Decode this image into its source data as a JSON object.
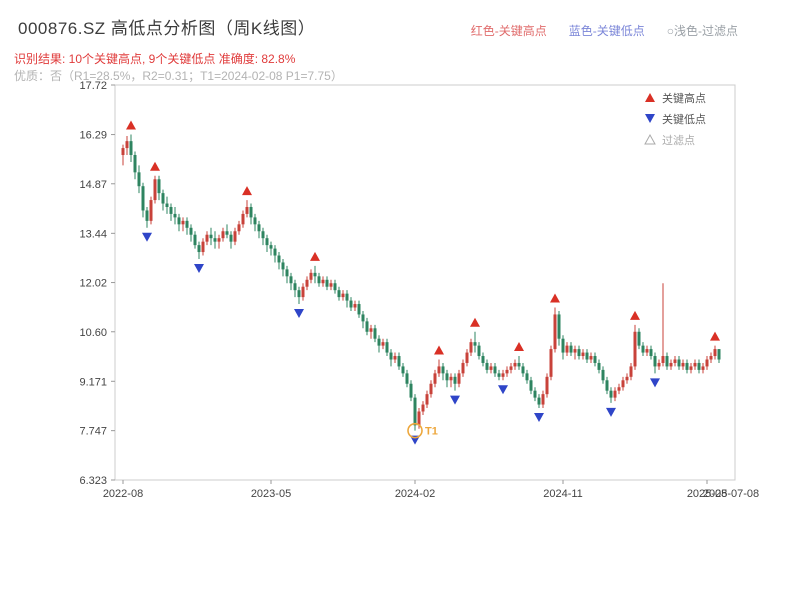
{
  "header": {
    "title": "000876.SZ 高低点分析图（周K线图）",
    "legend": [
      {
        "label": "红色-关键高点",
        "color": "#e06b6b"
      },
      {
        "label": "蓝色-关键低点",
        "color": "#7b86d8"
      },
      {
        "label": "○浅色-过滤点",
        "color": "#9aa0a6"
      }
    ],
    "result_line": "识别结果: 10个关键高点, 9个关键低点  准确度: 82.8%",
    "quality_line": "优质：否（R1=28.5%，R2=0.31；T1=2024-02-08 P1=7.75）"
  },
  "chart_data": {
    "type": "candlestick",
    "title": "000876.SZ 高低点分析图（周K线图）",
    "ylim": [
      6.323,
      17.72
    ],
    "y_tick_labels": [
      "6.323",
      "7.747",
      "9.171",
      "10.60",
      "12.02",
      "13.44",
      "14.87",
      "16.29",
      "17.72"
    ],
    "xlim": [
      -2,
      153
    ],
    "x_ticks": [
      {
        "index": 0,
        "label": "2022-08"
      },
      {
        "index": 37,
        "label": "2023-05"
      },
      {
        "index": 73,
        "label": "2024-02"
      },
      {
        "index": 110,
        "label": "2024-11"
      },
      {
        "index": 146,
        "label": "2025-08"
      }
    ],
    "end_date_label": {
      "index": 152,
      "label": "2025-07-08"
    },
    "candles": [
      [
        15.7,
        16.0,
        15.4,
        15.9
      ],
      [
        15.9,
        16.25,
        15.7,
        16.1
      ],
      [
        16.1,
        16.29,
        15.5,
        15.7
      ],
      [
        15.7,
        15.8,
        15.0,
        15.2
      ],
      [
        15.2,
        15.4,
        14.6,
        14.8
      ],
      [
        14.8,
        14.9,
        13.9,
        14.1
      ],
      [
        14.1,
        14.2,
        13.6,
        13.8
      ],
      [
        13.8,
        14.5,
        13.7,
        14.4
      ],
      [
        14.4,
        15.1,
        14.3,
        15.0
      ],
      [
        15.0,
        15.1,
        14.4,
        14.6
      ],
      [
        14.6,
        14.7,
        14.1,
        14.3
      ],
      [
        14.3,
        14.5,
        14.0,
        14.2
      ],
      [
        14.2,
        14.3,
        13.8,
        14.0
      ],
      [
        14.0,
        14.2,
        13.7,
        13.9
      ],
      [
        13.9,
        14.0,
        13.5,
        13.7
      ],
      [
        13.7,
        13.9,
        13.5,
        13.8
      ],
      [
        13.8,
        13.9,
        13.4,
        13.6
      ],
      [
        13.6,
        13.7,
        13.2,
        13.4
      ],
      [
        13.4,
        13.5,
        13.0,
        13.1
      ],
      [
        13.1,
        13.2,
        12.7,
        12.9
      ],
      [
        12.9,
        13.3,
        12.8,
        13.2
      ],
      [
        13.2,
        13.5,
        13.1,
        13.4
      ],
      [
        13.4,
        13.6,
        13.1,
        13.3
      ],
      [
        13.3,
        13.5,
        13.0,
        13.2
      ],
      [
        13.2,
        13.4,
        13.0,
        13.3
      ],
      [
        13.3,
        13.6,
        13.2,
        13.5
      ],
      [
        13.5,
        13.7,
        13.3,
        13.4
      ],
      [
        13.4,
        13.5,
        13.0,
        13.2
      ],
      [
        13.2,
        13.6,
        13.1,
        13.5
      ],
      [
        13.5,
        13.8,
        13.4,
        13.7
      ],
      [
        13.7,
        14.1,
        13.6,
        14.0
      ],
      [
        14.0,
        14.4,
        13.9,
        14.2
      ],
      [
        14.2,
        14.3,
        13.7,
        13.9
      ],
      [
        13.9,
        14.0,
        13.5,
        13.7
      ],
      [
        13.7,
        13.8,
        13.3,
        13.5
      ],
      [
        13.5,
        13.6,
        13.1,
        13.3
      ],
      [
        13.3,
        13.4,
        12.9,
        13.1
      ],
      [
        13.1,
        13.2,
        12.8,
        13.0
      ],
      [
        13.0,
        13.1,
        12.6,
        12.8
      ],
      [
        12.8,
        12.9,
        12.4,
        12.6
      ],
      [
        12.6,
        12.7,
        12.2,
        12.4
      ],
      [
        12.4,
        12.5,
        12.0,
        12.2
      ],
      [
        12.2,
        12.3,
        11.8,
        12.0
      ],
      [
        12.0,
        12.1,
        11.6,
        11.8
      ],
      [
        11.8,
        11.9,
        11.4,
        11.6
      ],
      [
        11.6,
        12.0,
        11.5,
        11.9
      ],
      [
        11.9,
        12.2,
        11.8,
        12.1
      ],
      [
        12.1,
        12.4,
        12.0,
        12.3
      ],
      [
        12.3,
        12.5,
        12.0,
        12.2
      ],
      [
        12.2,
        12.3,
        11.9,
        12.0
      ],
      [
        12.0,
        12.2,
        11.9,
        12.1
      ],
      [
        12.1,
        12.2,
        11.8,
        11.9
      ],
      [
        11.9,
        12.1,
        11.8,
        12.0
      ],
      [
        12.0,
        12.1,
        11.7,
        11.8
      ],
      [
        11.8,
        11.9,
        11.5,
        11.6
      ],
      [
        11.6,
        11.8,
        11.5,
        11.7
      ],
      [
        11.7,
        11.8,
        11.3,
        11.5
      ],
      [
        11.5,
        11.6,
        11.2,
        11.3
      ],
      [
        11.3,
        11.5,
        11.2,
        11.4
      ],
      [
        11.4,
        11.5,
        11.0,
        11.1
      ],
      [
        11.1,
        11.2,
        10.7,
        10.9
      ],
      [
        10.9,
        11.0,
        10.5,
        10.6
      ],
      [
        10.6,
        10.8,
        10.4,
        10.7
      ],
      [
        10.7,
        10.8,
        10.3,
        10.4
      ],
      [
        10.4,
        10.5,
        10.0,
        10.2
      ],
      [
        10.2,
        10.4,
        10.1,
        10.3
      ],
      [
        10.3,
        10.4,
        9.9,
        10.0
      ],
      [
        10.0,
        10.1,
        9.6,
        9.8
      ],
      [
        9.8,
        10.0,
        9.7,
        9.9
      ],
      [
        9.9,
        10.0,
        9.5,
        9.6
      ],
      [
        9.6,
        9.7,
        9.3,
        9.4
      ],
      [
        9.4,
        9.5,
        9.0,
        9.1
      ],
      [
        9.1,
        9.2,
        8.6,
        8.7
      ],
      [
        8.7,
        8.8,
        7.747,
        7.9
      ],
      [
        7.9,
        8.4,
        7.8,
        8.3
      ],
      [
        8.3,
        8.6,
        8.2,
        8.5
      ],
      [
        8.5,
        8.9,
        8.4,
        8.8
      ],
      [
        8.8,
        9.2,
        8.7,
        9.1
      ],
      [
        9.1,
        9.5,
        9.0,
        9.4
      ],
      [
        9.4,
        9.8,
        9.3,
        9.6
      ],
      [
        9.6,
        9.7,
        9.2,
        9.4
      ],
      [
        9.4,
        9.5,
        9.0,
        9.2
      ],
      [
        9.2,
        9.4,
        9.0,
        9.3
      ],
      [
        9.3,
        9.4,
        8.9,
        9.1
      ],
      [
        9.1,
        9.5,
        9.0,
        9.4
      ],
      [
        9.4,
        9.8,
        9.3,
        9.7
      ],
      [
        9.7,
        10.1,
        9.6,
        10.0
      ],
      [
        10.0,
        10.4,
        9.9,
        10.3
      ],
      [
        10.3,
        10.6,
        10.0,
        10.2
      ],
      [
        10.2,
        10.3,
        9.8,
        9.9
      ],
      [
        9.9,
        10.0,
        9.6,
        9.7
      ],
      [
        9.7,
        9.8,
        9.4,
        9.5
      ],
      [
        9.5,
        9.7,
        9.4,
        9.6
      ],
      [
        9.6,
        9.7,
        9.3,
        9.4
      ],
      [
        9.4,
        9.5,
        9.2,
        9.3
      ],
      [
        9.3,
        9.5,
        9.2,
        9.4
      ],
      [
        9.4,
        9.6,
        9.3,
        9.5
      ],
      [
        9.5,
        9.7,
        9.4,
        9.6
      ],
      [
        9.6,
        9.8,
        9.5,
        9.7
      ],
      [
        9.7,
        9.9,
        9.5,
        9.6
      ],
      [
        9.6,
        9.7,
        9.3,
        9.4
      ],
      [
        9.4,
        9.5,
        9.1,
        9.2
      ],
      [
        9.2,
        9.3,
        8.8,
        8.9
      ],
      [
        8.9,
        9.0,
        8.6,
        8.7
      ],
      [
        8.7,
        8.8,
        8.4,
        8.5
      ],
      [
        8.5,
        8.9,
        8.4,
        8.8
      ],
      [
        8.8,
        9.4,
        8.7,
        9.3
      ],
      [
        9.3,
        10.2,
        9.2,
        10.1
      ],
      [
        10.1,
        11.3,
        10.0,
        11.1
      ],
      [
        11.1,
        11.2,
        10.2,
        10.4
      ],
      [
        10.4,
        10.5,
        9.8,
        10.0
      ],
      [
        10.0,
        10.3,
        9.9,
        10.2
      ],
      [
        10.2,
        10.3,
        9.9,
        10.0
      ],
      [
        10.0,
        10.2,
        9.8,
        10.1
      ],
      [
        10.1,
        10.2,
        9.8,
        9.9
      ],
      [
        9.9,
        10.1,
        9.8,
        10.0
      ],
      [
        10.0,
        10.1,
        9.7,
        9.8
      ],
      [
        9.8,
        10.0,
        9.7,
        9.9
      ],
      [
        9.9,
        10.0,
        9.6,
        9.7
      ],
      [
        9.7,
        9.8,
        9.4,
        9.5
      ],
      [
        9.5,
        9.6,
        9.1,
        9.2
      ],
      [
        9.2,
        9.3,
        8.8,
        8.9
      ],
      [
        8.9,
        9.0,
        8.55,
        8.7
      ],
      [
        8.7,
        9.0,
        8.6,
        8.9
      ],
      [
        8.9,
        9.1,
        8.8,
        9.0
      ],
      [
        9.0,
        9.3,
        8.9,
        9.2
      ],
      [
        9.2,
        9.4,
        9.1,
        9.3
      ],
      [
        9.3,
        9.7,
        9.2,
        9.6
      ],
      [
        9.6,
        10.8,
        9.5,
        10.6
      ],
      [
        10.6,
        10.7,
        10.1,
        10.2
      ],
      [
        10.2,
        10.3,
        9.9,
        10.0
      ],
      [
        10.0,
        10.2,
        9.9,
        10.1
      ],
      [
        10.1,
        10.2,
        9.8,
        9.9
      ],
      [
        9.9,
        10.0,
        9.4,
        9.6
      ],
      [
        9.6,
        9.8,
        9.5,
        9.7
      ],
      [
        9.7,
        12.0,
        9.6,
        9.9
      ],
      [
        9.9,
        10.0,
        9.5,
        9.6
      ],
      [
        9.6,
        9.8,
        9.5,
        9.7
      ],
      [
        9.7,
        9.9,
        9.6,
        9.8
      ],
      [
        9.8,
        9.9,
        9.5,
        9.6
      ],
      [
        9.6,
        9.8,
        9.5,
        9.7
      ],
      [
        9.7,
        9.8,
        9.4,
        9.5
      ],
      [
        9.5,
        9.7,
        9.4,
        9.6
      ],
      [
        9.6,
        9.8,
        9.5,
        9.7
      ],
      [
        9.7,
        9.8,
        9.4,
        9.5
      ],
      [
        9.5,
        9.7,
        9.4,
        9.6
      ],
      [
        9.6,
        9.9,
        9.5,
        9.8
      ],
      [
        9.8,
        10.0,
        9.7,
        9.9
      ],
      [
        9.9,
        10.2,
        9.8,
        10.1
      ],
      [
        10.1,
        10.1,
        9.7,
        9.8
      ]
    ],
    "key_high_indices": [
      2,
      8,
      31,
      48,
      79,
      88,
      99,
      108,
      128,
      148
    ],
    "key_low_indices": [
      6,
      19,
      44,
      73,
      83,
      95,
      104,
      122,
      133
    ],
    "t1": {
      "index": 73,
      "price": 7.747,
      "label": "T1"
    },
    "plot_legend": [
      {
        "label": "关键高点",
        "marker": "up",
        "color": "#d93025",
        "text_color": "#555555"
      },
      {
        "label": "关键低点",
        "marker": "down",
        "color": "#2f45c8",
        "text_color": "#555555"
      },
      {
        "label": "过滤点",
        "marker": "open-up",
        "color": "#aaaaaa",
        "text_color": "#aaaaaa"
      }
    ],
    "colors": {
      "up": "#c8423a",
      "down": "#2e8460",
      "key_high": "#d93025",
      "key_low": "#2f45c8",
      "t1": "#eda73c",
      "axis_text": "#444444",
      "border": "#cccccc"
    }
  }
}
